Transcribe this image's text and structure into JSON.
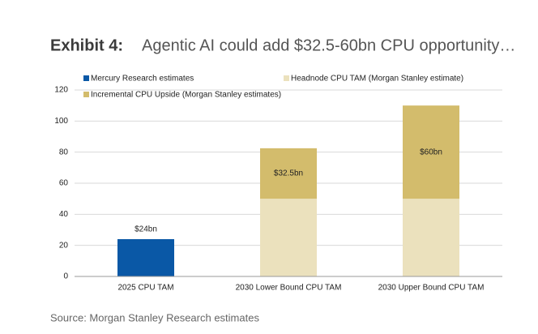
{
  "chart_data": {
    "type": "stacked-bar",
    "title_label": "Exhibit 4:",
    "title": "Agentic AI could add $32.5-60bn CPU opportunity…",
    "source": "Source: Morgan Stanley Research estimates",
    "categories": [
      "2025 CPU TAM",
      "2030 Lower Bound CPU TAM",
      "2030 Upper Bound CPU TAM"
    ],
    "series": [
      {
        "name": "Mercury Research estimates",
        "color": "#0a58a6",
        "values": [
          24,
          null,
          null
        ],
        "value_labels": [
          "$24bn",
          null,
          null
        ]
      },
      {
        "name": "Headnode CPU TAM (Morgan Stanley estimate)",
        "color": "#ebe1bd",
        "values": [
          null,
          50,
          50
        ]
      },
      {
        "name": "Incremental CPU Upside (Morgan Stanley estimates)",
        "color": "#d3bc6c",
        "values": [
          null,
          32.5,
          60
        ],
        "value_labels": [
          null,
          "$32.5bn",
          "$60bn"
        ]
      }
    ],
    "ylim": [
      0,
      120
    ],
    "yticks": [
      0,
      20,
      40,
      60,
      80,
      100,
      120
    ],
    "grid": true
  }
}
